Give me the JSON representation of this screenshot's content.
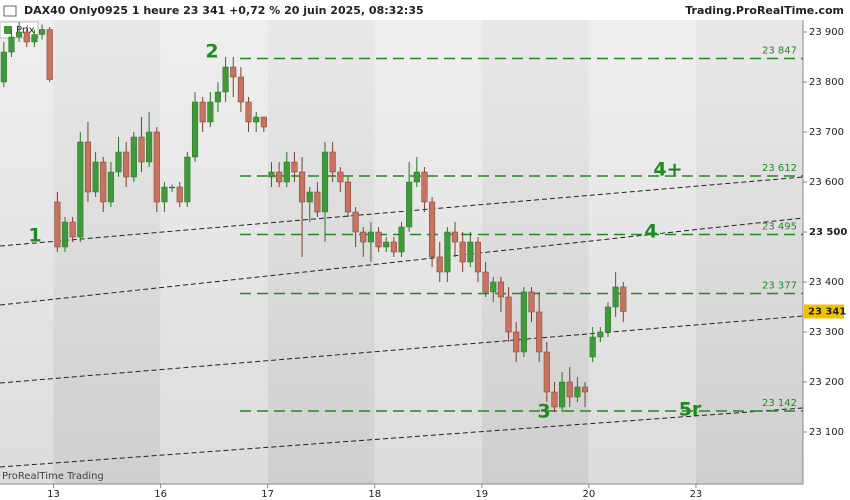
{
  "chart_data": {
    "type": "candlestick",
    "title": "DAX40 Only0925 1 heure 23 341 +0,72 % 20 juin 2025, 08:32:35",
    "source": "Trading.ProRealTime.com",
    "legend": "Prix",
    "watermark": "ProRealTime Trading",
    "up_color": "#3f9a3a",
    "down_color": "#c8735f",
    "level_color": "#1f8a1f",
    "categories": [
      null,
      null,
      null,
      null,
      null,
      null,
      null,
      "13",
      null,
      null,
      null,
      null,
      null,
      null,
      null,
      null,
      null,
      null,
      null,
      null,
      null,
      "16",
      null,
      null,
      null,
      null,
      null,
      null,
      null,
      null,
      null,
      null,
      null,
      null,
      null,
      "17",
      null,
      null,
      null,
      null,
      null,
      null,
      null,
      null,
      null,
      null,
      null,
      null,
      null,
      "18",
      null,
      null,
      null,
      null,
      null,
      null,
      null,
      null,
      null,
      null,
      null,
      null,
      null,
      "19",
      null,
      null,
      null,
      null,
      null,
      null,
      null,
      null,
      null,
      null,
      null,
      null,
      null,
      "20",
      null,
      null,
      null,
      null,
      null,
      null,
      null,
      null,
      null,
      null,
      null,
      null,
      null,
      "23",
      null,
      null,
      null,
      null,
      null,
      null,
      null,
      null,
      null,
      null,
      null,
      null,
      null
    ],
    "open": [
      23800,
      23860,
      23890,
      23900,
      23880,
      23895,
      23905,
      23560,
      23470,
      23520,
      23490,
      23680,
      23580,
      23640,
      23560,
      23620,
      23660,
      23610,
      23690,
      23640,
      23700,
      23560,
      23590,
      23590,
      23560,
      23650,
      23760,
      23720,
      23760,
      23780,
      23830,
      23810,
      23760,
      23720,
      23730,
      23610,
      23620,
      23600,
      23640,
      23620,
      23560,
      23580,
      23540,
      23660,
      23620,
      23600,
      23540,
      23500,
      23480,
      23500,
      23470,
      23480,
      23460,
      23510,
      23600,
      23620,
      23560,
      23450,
      23420,
      23500,
      23480,
      23440,
      23480,
      23420,
      23380,
      23400,
      23370,
      23300,
      23260,
      23380,
      23340,
      23260,
      23180,
      23150,
      23200,
      23170,
      23190,
      23250,
      23290,
      23300,
      23350,
      23390,
      null,
      null,
      null,
      null,
      null,
      null,
      null,
      null,
      null,
      null,
      null,
      null,
      null,
      null,
      null,
      null,
      null,
      null,
      null,
      null,
      null,
      null,
      null
    ],
    "high": [
      23880,
      23905,
      23920,
      23910,
      23905,
      23915,
      23910,
      23580,
      23530,
      23530,
      23700,
      23720,
      23660,
      23650,
      23640,
      23690,
      23680,
      23700,
      23730,
      23740,
      23710,
      23600,
      23595,
      23600,
      23660,
      23780,
      23770,
      23780,
      23800,
      23850,
      23850,
      23830,
      23770,
      23740,
      23730,
      23640,
      23640,
      23660,
      23660,
      23650,
      23590,
      23600,
      23680,
      23680,
      23630,
      23610,
      23550,
      23510,
      23520,
      23510,
      23490,
      23490,
      23520,
      23640,
      23650,
      23630,
      23570,
      23480,
      23510,
      23520,
      23500,
      23500,
      23490,
      23440,
      23410,
      23410,
      23390,
      23320,
      23390,
      23390,
      23380,
      23280,
      23200,
      23220,
      23230,
      23210,
      23200,
      23310,
      23310,
      23360,
      23420,
      23400,
      null,
      null,
      null,
      null,
      null,
      null,
      null,
      null,
      null,
      null,
      null,
      null,
      null,
      null,
      null,
      null,
      null,
      null,
      null,
      null,
      null,
      null,
      null
    ],
    "low": [
      23790,
      23850,
      23880,
      23870,
      23870,
      23885,
      23800,
      23460,
      23460,
      23480,
      23480,
      23560,
      23570,
      23540,
      23550,
      23610,
      23590,
      23600,
      23620,
      23630,
      23540,
      23540,
      23580,
      23550,
      23550,
      23640,
      23700,
      23710,
      23740,
      23760,
      23770,
      23740,
      23700,
      23700,
      23700,
      23590,
      23590,
      23590,
      23600,
      23450,
      23520,
      23530,
      23480,
      23600,
      23580,
      23530,
      23470,
      23450,
      23440,
      23460,
      23460,
      23450,
      23450,
      23500,
      23590,
      23540,
      23430,
      23400,
      23400,
      23450,
      23420,
      23430,
      23400,
      23370,
      23360,
      23340,
      23280,
      23240,
      23250,
      23320,
      23240,
      23160,
      23140,
      23140,
      23150,
      23160,
      23150,
      23240,
      23280,
      23290,
      23330,
      23320,
      null,
      null,
      null,
      null,
      null,
      null,
      null,
      null,
      null,
      null,
      null,
      null,
      null,
      null,
      null,
      null,
      null,
      null,
      null,
      null,
      null,
      null,
      null
    ],
    "close": [
      23860,
      23890,
      23900,
      23880,
      23895,
      23905,
      23805,
      23470,
      23520,
      23490,
      23680,
      23580,
      23640,
      23560,
      23620,
      23660,
      23610,
      23690,
      23640,
      23700,
      23560,
      23590,
      23590,
      23560,
      23650,
      23760,
      23720,
      23760,
      23780,
      23830,
      23810,
      23760,
      23720,
      23730,
      23710,
      23620,
      23600,
      23640,
      23620,
      23560,
      23580,
      23540,
      23660,
      23620,
      23600,
      23540,
      23500,
      23480,
      23500,
      23470,
      23480,
      23460,
      23510,
      23600,
      23620,
      23560,
      23450,
      23420,
      23500,
      23480,
      23440,
      23480,
      23420,
      23380,
      23400,
      23370,
      23300,
      23260,
      23380,
      23340,
      23260,
      23180,
      23150,
      23200,
      23170,
      23190,
      23180,
      23290,
      23300,
      23350,
      23390,
      23341,
      null,
      null,
      null,
      null,
      null,
      null,
      null,
      null,
      null,
      null,
      null,
      null,
      null,
      null,
      null,
      null,
      null,
      null,
      null,
      null,
      null,
      null,
      null
    ],
    "ylim": [
      22996,
      23924
    ],
    "yticks": [
      {
        "value": 23100,
        "label": "23 100"
      },
      {
        "value": 23200,
        "label": "23 200"
      },
      {
        "value": 23300,
        "label": "23 300"
      },
      {
        "value": 23400,
        "label": "23 400"
      },
      {
        "value": 23500,
        "label": "23 500"
      },
      {
        "value": 23600,
        "label": "23 600"
      },
      {
        "value": 23700,
        "label": "23 700"
      },
      {
        "value": 23800,
        "label": "23 800"
      },
      {
        "value": 23900,
        "label": "23 900"
      }
    ],
    "bold_tick": 23500,
    "last_price": {
      "value": 23341,
      "label": "23 341"
    },
    "levels": [
      {
        "value": 23847,
        "label": "23 847"
      },
      {
        "value": 23612,
        "label": "23 612"
      },
      {
        "value": 23495,
        "label": "23 495"
      },
      {
        "value": 23377,
        "label": "23 377"
      },
      {
        "value": 23142,
        "label": "23 142"
      }
    ],
    "trendlines": [
      {
        "start": 23472,
        "end": 23610
      },
      {
        "start": 23354,
        "end": 23528
      },
      {
        "start": 23198,
        "end": 23332
      },
      {
        "start": 23030,
        "end": 23148
      }
    ],
    "annotations": [
      "1",
      "2",
      "4+",
      "4",
      "5r",
      "3"
    ]
  }
}
